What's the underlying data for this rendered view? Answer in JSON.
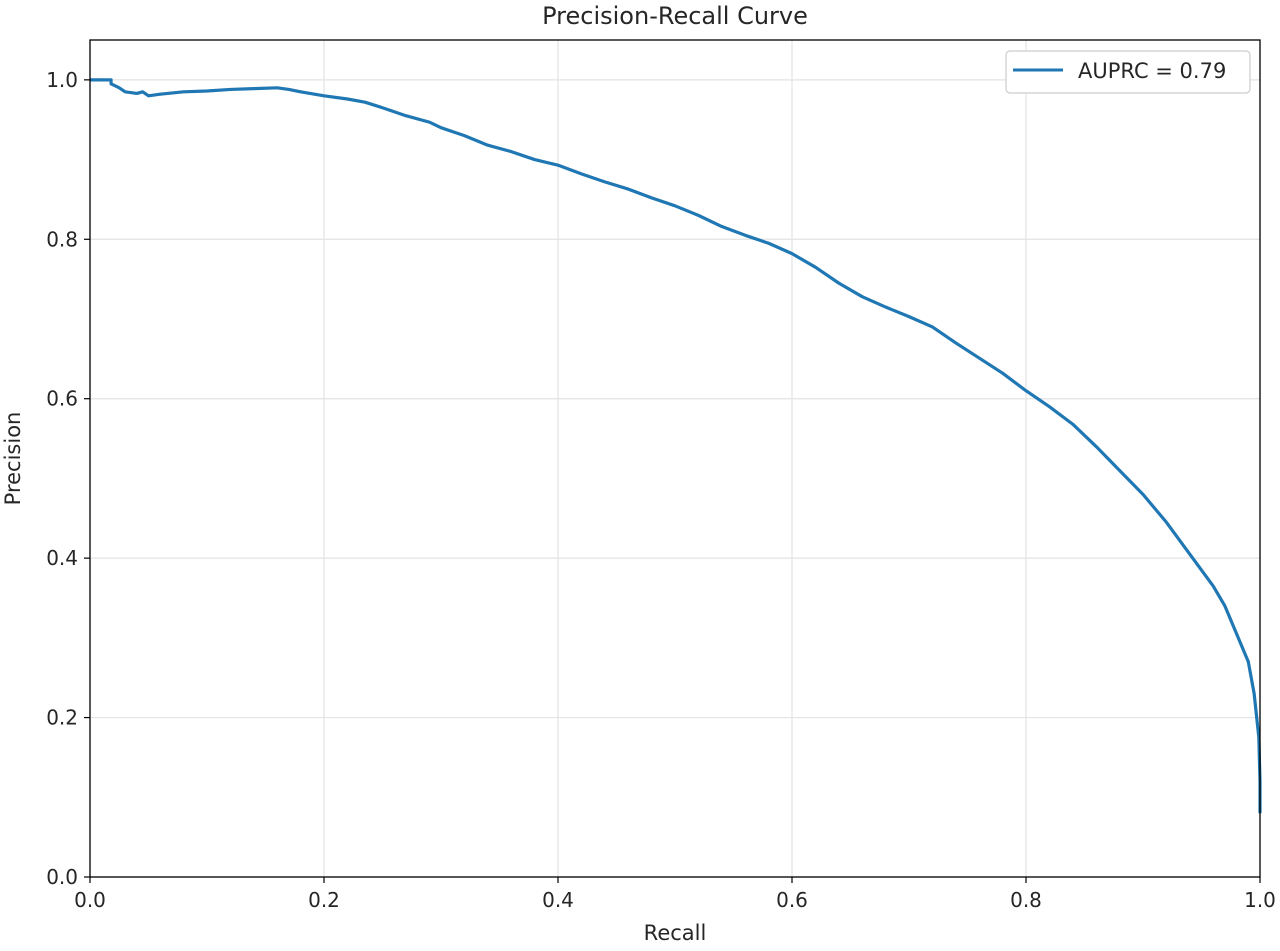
{
  "chart_data": {
    "type": "line",
    "title": "Precision-Recall Curve",
    "xlabel": "Recall",
    "ylabel": "Precision",
    "xlim": [
      0.0,
      1.0
    ],
    "ylim": [
      0.0,
      1.05
    ],
    "xticks": [
      "0.0",
      "0.2",
      "0.4",
      "0.6",
      "0.8",
      "1.0"
    ],
    "yticks": [
      "0.0",
      "0.2",
      "0.4",
      "0.6",
      "0.8",
      "1.0"
    ],
    "grid": true,
    "legend_position": "top-right",
    "series": [
      {
        "name": "AUPRC = 0.79",
        "color": "#1f77b4",
        "x": [
          0.0,
          0.018,
          0.018,
          0.025,
          0.03,
          0.04,
          0.045,
          0.05,
          0.06,
          0.08,
          0.1,
          0.12,
          0.14,
          0.16,
          0.17,
          0.18,
          0.2,
          0.22,
          0.235,
          0.25,
          0.27,
          0.29,
          0.3,
          0.32,
          0.34,
          0.36,
          0.38,
          0.4,
          0.42,
          0.44,
          0.46,
          0.48,
          0.5,
          0.52,
          0.54,
          0.56,
          0.58,
          0.6,
          0.62,
          0.64,
          0.66,
          0.68,
          0.7,
          0.72,
          0.74,
          0.76,
          0.78,
          0.8,
          0.82,
          0.84,
          0.86,
          0.88,
          0.9,
          0.92,
          0.94,
          0.96,
          0.97,
          0.98,
          0.99,
          0.995,
          0.999,
          1.0,
          1.0
        ],
        "y": [
          1.0,
          1.0,
          0.995,
          0.99,
          0.985,
          0.983,
          0.985,
          0.98,
          0.982,
          0.985,
          0.986,
          0.988,
          0.989,
          0.99,
          0.988,
          0.985,
          0.98,
          0.976,
          0.972,
          0.965,
          0.955,
          0.947,
          0.94,
          0.93,
          0.918,
          0.91,
          0.9,
          0.893,
          0.882,
          0.872,
          0.863,
          0.852,
          0.842,
          0.83,
          0.816,
          0.805,
          0.795,
          0.782,
          0.765,
          0.745,
          0.728,
          0.715,
          0.703,
          0.69,
          0.67,
          0.651,
          0.632,
          0.61,
          0.59,
          0.568,
          0.54,
          0.51,
          0.48,
          0.445,
          0.405,
          0.365,
          0.34,
          0.305,
          0.27,
          0.23,
          0.175,
          0.12,
          0.08
        ]
      }
    ]
  }
}
